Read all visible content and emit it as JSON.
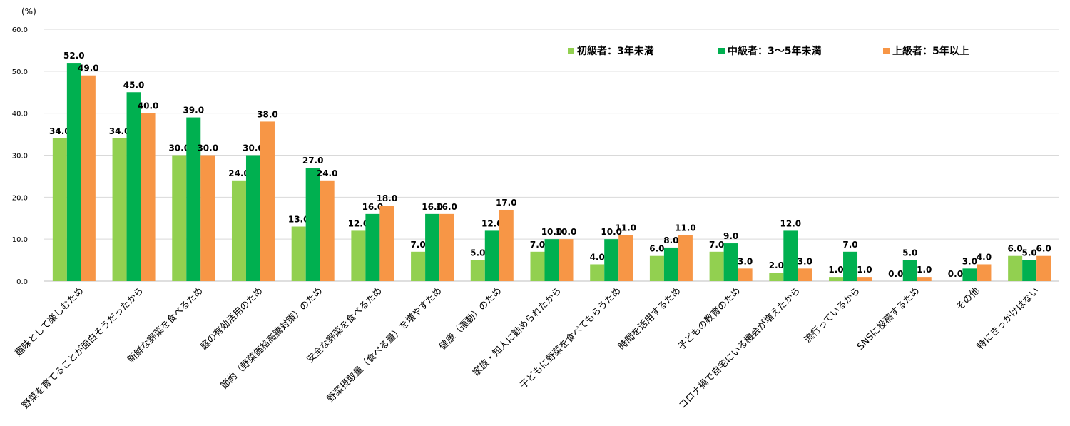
{
  "chart_data": {
    "type": "bar",
    "title": "",
    "unit_label": "(%)",
    "ylim": [
      0,
      60
    ],
    "yticks": [
      "0.0",
      "10.0",
      "20.0",
      "30.0",
      "40.0",
      "50.0",
      "60.0"
    ],
    "grid": true,
    "legend_position": "top-right",
    "categories": [
      "趣味として楽しむため",
      "野菜を育てることが面白そうだったから",
      "新鮮な野菜を食べるため",
      "庭の有効活用のため",
      "節約（野菜価格高騰対策）のため",
      "安全な野菜を食べるため",
      "野菜摂取量（食べる量）を増やすため",
      "健康（運動）のため",
      "家族・知人に勧められたから",
      "子どもに野菜を食べてもらうため",
      "時間を活用するため",
      "子どもの教育のため",
      "コロナ禍で自宅にいる機会が増えたから",
      "流行っているから",
      "SNSに投稿するため",
      "その他",
      "特にきっかけはない"
    ],
    "series": [
      {
        "name": "初級者：3年未満",
        "color": "#92d050",
        "values": [
          34.0,
          34.0,
          30.0,
          24.0,
          13.0,
          12.0,
          7.0,
          5.0,
          7.0,
          4.0,
          6.0,
          7.0,
          2.0,
          1.0,
          0.0,
          0.0,
          6.0
        ]
      },
      {
        "name": "中級者：3〜5年未満",
        "color": "#00b050",
        "values": [
          52.0,
          45.0,
          39.0,
          30.0,
          27.0,
          16.0,
          16.0,
          12.0,
          10.0,
          10.0,
          8.0,
          9.0,
          12.0,
          7.0,
          5.0,
          3.0,
          5.0
        ]
      },
      {
        "name": "上級者：5年以上",
        "color": "#f79646",
        "values": [
          49.0,
          40.0,
          30.0,
          38.0,
          24.0,
          18.0,
          16.0,
          17.0,
          10.0,
          11.0,
          11.0,
          3.0,
          3.0,
          1.0,
          1.0,
          4.0,
          6.0
        ]
      }
    ]
  }
}
